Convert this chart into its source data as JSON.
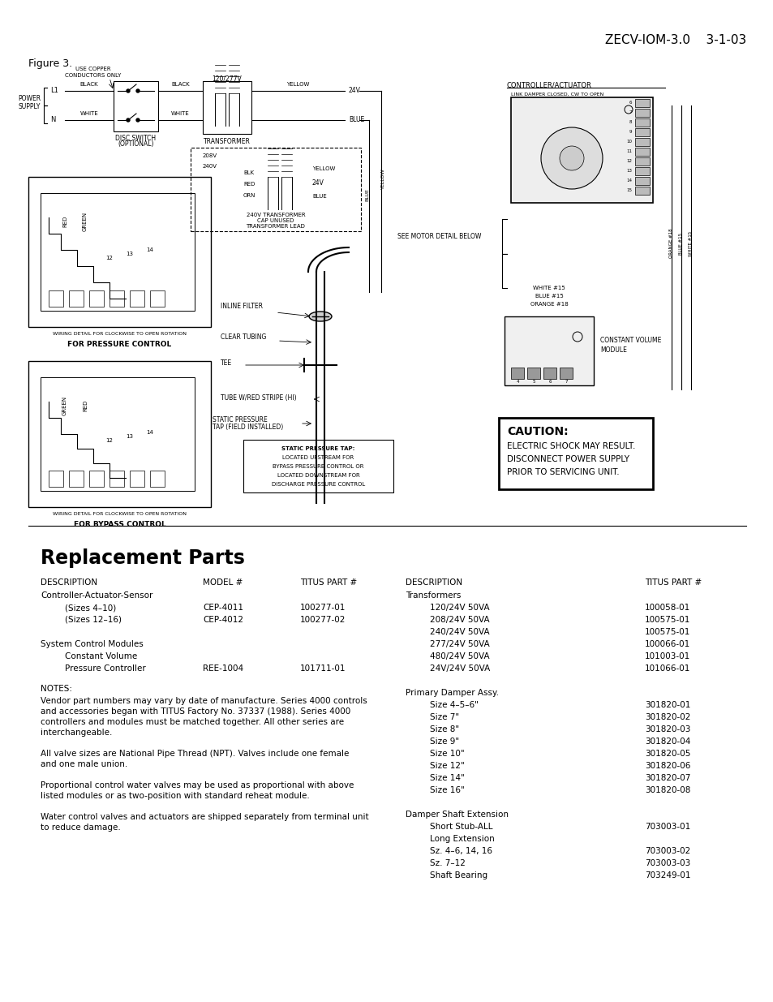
{
  "header_left": "Figure 3.",
  "header_right": "ZECV-IOM-3.0    3-1-03",
  "section_title": "Replacement Parts",
  "col1_header": [
    "DESCRIPTION",
    "MODEL #",
    "TITUS PART #"
  ],
  "col1_data": [
    [
      "Controller-Actuator-Sensor",
      "",
      ""
    ],
    [
      "    (Sizes 4–10)",
      "CEP-4011",
      "100277-01"
    ],
    [
      "    (Sizes 12–16)",
      "CEP-4012",
      "100277-02"
    ],
    [
      "",
      "",
      ""
    ],
    [
      "System Control Modules",
      "",
      ""
    ],
    [
      "    Constant Volume",
      "",
      ""
    ],
    [
      "    Pressure Controller",
      "REE-1004",
      "101711-01"
    ]
  ],
  "notes_title": "NOTES:",
  "notes_lines": [
    "Vendor part numbers may vary by date of manufacture. Series 4000 controls",
    "and accessories began with TITUS Factory No. 37337 (1988). Series 4000",
    "controllers and modules must be matched together. All other series are",
    "interchangeable.",
    "",
    "All valve sizes are National Pipe Thread (NPT). Valves include one female",
    "and one male union.",
    "",
    "Proportional control water valves may be used as proportional with above",
    "listed modules or as two-position with standard reheat module.",
    "",
    "Water control valves and actuators are shipped separately from terminal unit",
    "to reduce damage."
  ],
  "col2_header": [
    "DESCRIPTION",
    "TITUS PART #"
  ],
  "col2_data": [
    [
      "Transformers",
      ""
    ],
    [
      "    120/24V 50VA",
      "100058-01"
    ],
    [
      "    208/24V 50VA",
      "100575-01"
    ],
    [
      "    240/24V 50VA",
      "100575-01"
    ],
    [
      "    277/24V 50VA",
      "100066-01"
    ],
    [
      "    480/24V 50VA",
      "101003-01"
    ],
    [
      "    24V/24V 50VA",
      "101066-01"
    ],
    [
      "",
      ""
    ],
    [
      "Primary Damper Assy.",
      ""
    ],
    [
      "    Size 4–5–6\"",
      "301820-01"
    ],
    [
      "    Size 7\"",
      "301820-02"
    ],
    [
      "    Size 8\"",
      "301820-03"
    ],
    [
      "    Size 9\"",
      "301820-04"
    ],
    [
      "    Size 10\"",
      "301820-05"
    ],
    [
      "    Size 12\"",
      "301820-06"
    ],
    [
      "    Size 14\"",
      "301820-07"
    ],
    [
      "    Size 16\"",
      "301820-08"
    ],
    [
      "",
      ""
    ],
    [
      "Damper Shaft Extension",
      ""
    ],
    [
      "    Short Stub-ALL",
      "703003-01"
    ],
    [
      "    Long Extension",
      ""
    ],
    [
      "    Sz. 4–6, 14, 16",
      "703003-02"
    ],
    [
      "    Sz. 7–12",
      "703003-03"
    ],
    [
      "    Shaft Bearing",
      "703249-01"
    ]
  ],
  "caution_title": "CAUTION:",
  "caution_lines": [
    "ELECTRIC SHOCK MAY RESULT.",
    "DISCONNECT POWER SUPPLY",
    "PRIOR TO SERVICING UNIT."
  ],
  "bg_color": "#ffffff",
  "text_color": "#000000"
}
